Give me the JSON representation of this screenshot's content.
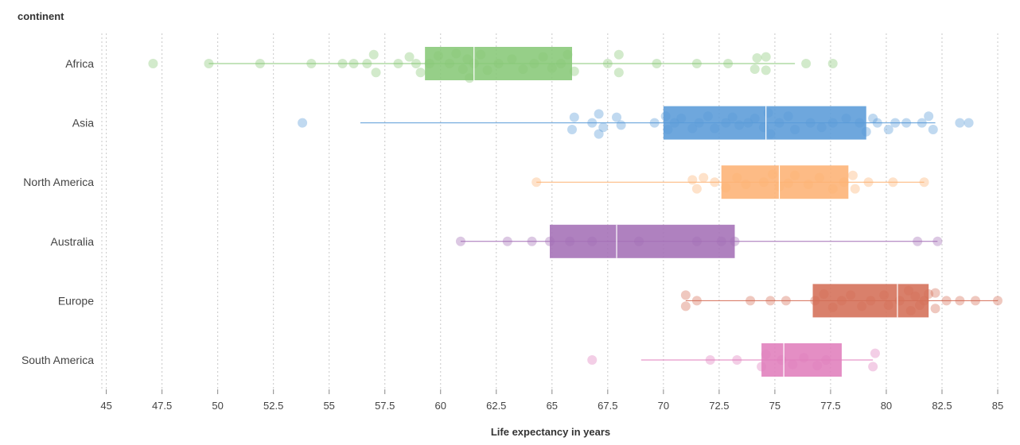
{
  "chart_data": {
    "type": "box",
    "y_axis_title": "continent",
    "x_axis_title": "Life expectancy in years",
    "x_ticks": [
      "45",
      "47.5",
      "50",
      "52.5",
      "55",
      "57.5",
      "60",
      "62.5",
      "65",
      "67.5",
      "70",
      "72.5",
      "75",
      "77.5",
      "80",
      "82.5",
      "85"
    ],
    "xlim": [
      44.8,
      85
    ],
    "grid": "vertical dotted",
    "categories": [
      {
        "name": "Africa",
        "color": "#88c877",
        "whisker_low": 49.6,
        "q1": 59.3,
        "median": 61.5,
        "q3": 65.9,
        "whisker_high": 75.9,
        "points": [
          [
            47.1,
            0
          ],
          [
            49.6,
            0
          ],
          [
            51.9,
            0
          ],
          [
            54.2,
            0
          ],
          [
            55.6,
            0
          ],
          [
            56.1,
            0
          ],
          [
            56.7,
            0
          ],
          [
            57.0,
            -0.8
          ],
          [
            57.1,
            0.8
          ],
          [
            58.1,
            0
          ],
          [
            58.6,
            -0.6
          ],
          [
            58.9,
            0
          ],
          [
            59.1,
            0.8
          ],
          [
            59.5,
            0
          ],
          [
            59.9,
            -0.7
          ],
          [
            60.4,
            0
          ],
          [
            60.7,
            -0.9
          ],
          [
            61.0,
            0.5
          ],
          [
            61.2,
            -0.4
          ],
          [
            61.3,
            1.3
          ],
          [
            61.5,
            0
          ],
          [
            61.8,
            -0.8
          ],
          [
            62.1,
            0.6
          ],
          [
            62.6,
            0
          ],
          [
            63.2,
            -0.4
          ],
          [
            63.7,
            0.5
          ],
          [
            64.2,
            0
          ],
          [
            64.6,
            -0.6
          ],
          [
            65.0,
            0.4
          ],
          [
            65.4,
            0
          ],
          [
            65.7,
            -0.8
          ],
          [
            66.0,
            0.7
          ],
          [
            67.5,
            0
          ],
          [
            68.0,
            0.8
          ],
          [
            68.0,
            -0.8
          ],
          [
            69.7,
            0
          ],
          [
            71.5,
            0
          ],
          [
            72.9,
            0
          ],
          [
            74.1,
            0.5
          ],
          [
            74.2,
            -0.5
          ],
          [
            74.6,
            0.6
          ],
          [
            74.6,
            -0.6
          ],
          [
            76.4,
            0
          ],
          [
            77.6,
            0
          ]
        ]
      },
      {
        "name": "Asia",
        "color": "#5a9bd8",
        "whisker_low": 56.4,
        "q1": 70.0,
        "median": 74.6,
        "q3": 79.1,
        "whisker_high": 82.2,
        "points": [
          [
            53.8,
            0
          ],
          [
            65.9,
            0.6
          ],
          [
            66.0,
            -0.5
          ],
          [
            66.8,
            0
          ],
          [
            67.1,
            -0.8
          ],
          [
            67.1,
            1.0
          ],
          [
            67.3,
            0.4
          ],
          [
            67.9,
            -0.5
          ],
          [
            68.1,
            0.2
          ],
          [
            69.6,
            0
          ],
          [
            70.1,
            -0.6
          ],
          [
            70.2,
            0.6
          ],
          [
            70.5,
            0
          ],
          [
            70.8,
            -0.4
          ],
          [
            71.3,
            0.5
          ],
          [
            71.6,
            0
          ],
          [
            72.0,
            -0.6
          ],
          [
            72.3,
            0.5
          ],
          [
            72.8,
            0
          ],
          [
            73.1,
            -0.5
          ],
          [
            73.4,
            0.2
          ],
          [
            73.8,
            0
          ],
          [
            74.1,
            -0.4
          ],
          [
            74.5,
            0.4
          ],
          [
            74.7,
            -0.9
          ],
          [
            74.8,
            1.0
          ],
          [
            75.2,
            0
          ],
          [
            75.6,
            -0.6
          ],
          [
            75.9,
            0.6
          ],
          [
            76.6,
            0
          ],
          [
            77.1,
            0.4
          ],
          [
            77.6,
            0
          ],
          [
            78.2,
            -0.4
          ],
          [
            78.8,
            0
          ],
          [
            79.1,
            0.8
          ],
          [
            79.4,
            -0.4
          ],
          [
            79.6,
            0
          ],
          [
            80.1,
            0.6
          ],
          [
            80.4,
            0
          ],
          [
            80.9,
            0
          ],
          [
            81.6,
            0
          ],
          [
            81.9,
            -0.6
          ],
          [
            82.1,
            0.6
          ],
          [
            83.3,
            0
          ],
          [
            83.7,
            0
          ]
        ]
      },
      {
        "name": "North America",
        "color": "#fdb274",
        "whisker_low": 64.3,
        "q1": 72.6,
        "median": 75.2,
        "q3": 78.3,
        "whisker_high": 81.7,
        "points": [
          [
            64.3,
            0
          ],
          [
            71.3,
            -0.2
          ],
          [
            71.5,
            0.6
          ],
          [
            71.8,
            -0.4
          ],
          [
            72.3,
            0
          ],
          [
            72.8,
            0.5
          ],
          [
            73.3,
            -0.4
          ],
          [
            73.7,
            0.2
          ],
          [
            74.5,
            0
          ],
          [
            74.9,
            -0.7
          ],
          [
            75.2,
            0.4
          ],
          [
            75.6,
            0.1
          ],
          [
            75.9,
            -0.6
          ],
          [
            76.5,
            0.2
          ],
          [
            77.0,
            -0.4
          ],
          [
            77.6,
            0.6
          ],
          [
            78.1,
            0
          ],
          [
            78.5,
            -0.6
          ],
          [
            78.6,
            0.6
          ],
          [
            79.2,
            0
          ],
          [
            80.3,
            0
          ],
          [
            81.7,
            0
          ]
        ]
      },
      {
        "name": "Australia",
        "color": "#a46fb6",
        "whisker_low": 60.9,
        "q1": 64.9,
        "median": 67.9,
        "q3": 73.2,
        "whisker_high": 82.3,
        "points": [
          [
            60.9,
            0
          ],
          [
            63.0,
            0
          ],
          [
            64.1,
            0
          ],
          [
            64.9,
            0
          ],
          [
            65.8,
            0
          ],
          [
            66.8,
            0
          ],
          [
            68.9,
            0
          ],
          [
            71.5,
            0
          ],
          [
            72.6,
            0
          ],
          [
            73.2,
            0
          ],
          [
            81.4,
            0
          ],
          [
            82.3,
            0
          ]
        ]
      },
      {
        "name": "Europe",
        "color": "#d46e57",
        "whisker_low": 71.0,
        "q1": 76.7,
        "median": 80.5,
        "q3": 81.9,
        "whisker_high": 85,
        "points": [
          [
            71.0,
            0.5
          ],
          [
            71.0,
            -0.5
          ],
          [
            71.5,
            0
          ],
          [
            73.9,
            0
          ],
          [
            74.8,
            0
          ],
          [
            75.5,
            0
          ],
          [
            76.8,
            0
          ],
          [
            77.2,
            -0.6
          ],
          [
            77.6,
            0.6
          ],
          [
            78.0,
            0
          ],
          [
            78.4,
            -0.5
          ],
          [
            78.9,
            0.5
          ],
          [
            79.3,
            0
          ],
          [
            79.9,
            -0.5
          ],
          [
            80.1,
            0.4
          ],
          [
            80.6,
            0
          ],
          [
            81.0,
            -0.9
          ],
          [
            81.1,
            0.9
          ],
          [
            81.3,
            -0.4
          ],
          [
            81.5,
            0.4
          ],
          [
            81.7,
            0
          ],
          [
            81.9,
            -0.6
          ],
          [
            82.2,
            0.7
          ],
          [
            82.2,
            -0.7
          ],
          [
            82.7,
            0
          ],
          [
            83.3,
            0
          ],
          [
            84.0,
            0
          ],
          [
            85.0,
            0
          ]
        ]
      },
      {
        "name": "South America",
        "color": "#e07ebc",
        "whisker_low": 69.0,
        "q1": 74.4,
        "median": 75.4,
        "q3": 78.0,
        "whisker_high": 79.4,
        "points": [
          [
            66.8,
            0
          ],
          [
            72.1,
            0
          ],
          [
            73.3,
            0
          ],
          [
            74.4,
            0.6
          ],
          [
            74.6,
            -0.5
          ],
          [
            75.3,
            0
          ],
          [
            75.8,
            0.4
          ],
          [
            76.3,
            -0.2
          ],
          [
            76.9,
            0.5
          ],
          [
            77.3,
            0
          ],
          [
            79.4,
            0.6
          ],
          [
            79.5,
            -0.6
          ]
        ]
      }
    ]
  }
}
